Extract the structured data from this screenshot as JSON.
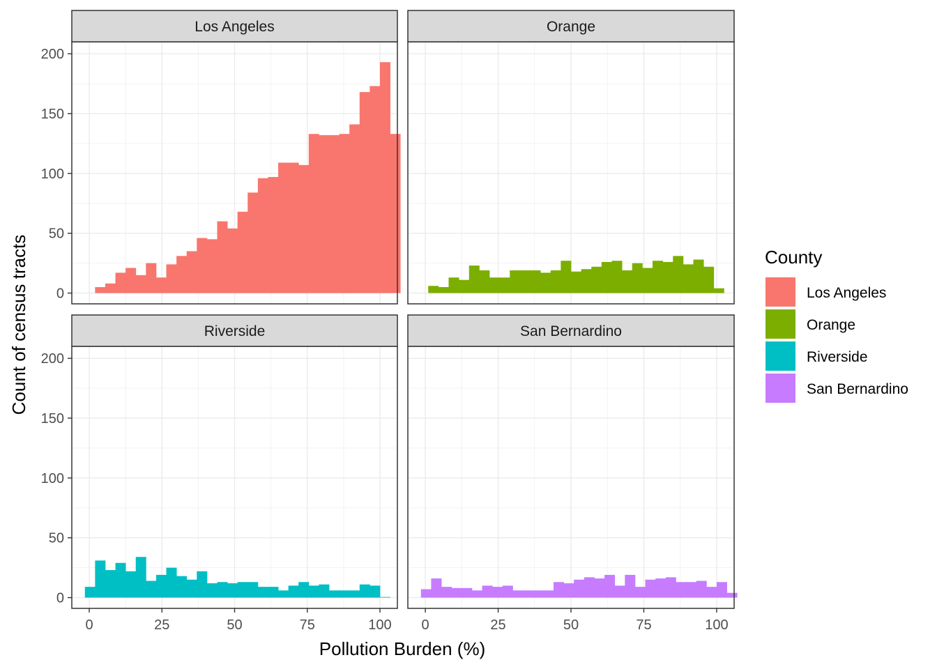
{
  "chart_data": {
    "type": "bar",
    "subtype": "faceted-histogram",
    "xlabel": "Pollution Burden (%)",
    "ylabel": "Count of census tracts",
    "xlim": [
      -6,
      106
    ],
    "ylim": [
      -9,
      210
    ],
    "x_ticks": [
      0,
      25,
      50,
      75,
      100
    ],
    "x_tick_labels": [
      "0",
      "25",
      "50",
      "75",
      "100"
    ],
    "y_ticks": [
      0,
      50,
      100,
      150,
      200
    ],
    "y_tick_labels": [
      "0",
      "50",
      "100",
      "150",
      "200"
    ],
    "grid": true,
    "bin_width": 3.5,
    "legend": {
      "title": "County",
      "position": "right",
      "items": [
        {
          "label": "Los Angeles",
          "color": "#F8766D"
        },
        {
          "label": "Orange",
          "color": "#7CAE00"
        },
        {
          "label": "Riverside",
          "color": "#00BFC4"
        },
        {
          "label": "San Bernardino",
          "color": "#C77CFF"
        }
      ]
    },
    "panels": [
      {
        "name": "Los Angeles",
        "color": "#F8766D",
        "bin_start": 2,
        "values": [
          5,
          8,
          17,
          21,
          15,
          25,
          13,
          24,
          31,
          35,
          46,
          45,
          60,
          54,
          68,
          84,
          96,
          97,
          109,
          109,
          107,
          133,
          132,
          132,
          133,
          141,
          168,
          173,
          193,
          133
        ]
      },
      {
        "name": "Orange",
        "color": "#7CAE00",
        "bin_start": 1,
        "values": [
          6,
          5,
          13,
          11,
          23,
          19,
          13,
          13,
          19,
          19,
          19,
          17,
          19,
          27,
          18,
          20,
          22,
          26,
          27,
          19,
          25,
          21,
          27,
          26,
          31,
          24,
          28,
          22,
          4
        ]
      },
      {
        "name": "Riverside",
        "color": "#00BFC4",
        "bin_start": -1.5,
        "values": [
          9,
          31,
          23,
          29,
          22,
          34,
          14,
          19,
          25,
          18,
          15,
          22,
          12,
          13,
          12,
          13,
          13,
          9,
          9,
          6,
          10,
          13,
          10,
          11,
          6,
          6,
          6,
          11,
          10,
          0.5
        ]
      },
      {
        "name": "San Bernardino",
        "color": "#C77CFF",
        "bin_start": -1.5,
        "values": [
          7,
          16,
          9,
          8,
          8,
          6,
          10,
          9,
          10,
          6,
          6,
          6,
          6,
          13,
          12,
          15,
          17,
          16,
          19,
          10,
          19,
          9,
          15,
          16,
          17,
          13,
          13,
          14,
          9,
          13,
          4
        ]
      }
    ]
  }
}
